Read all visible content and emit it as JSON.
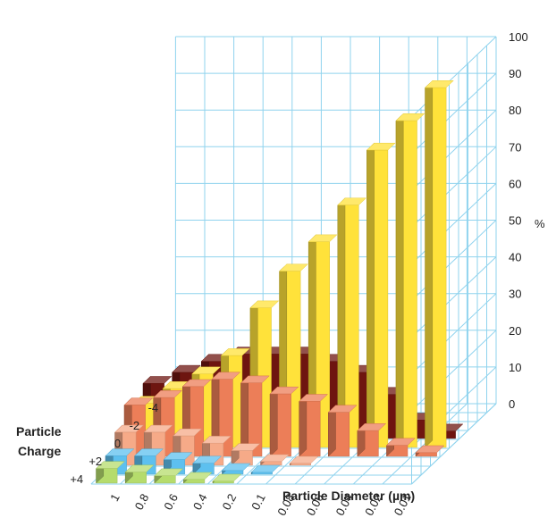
{
  "chart_data": {
    "type": "bar3d",
    "title": "",
    "xlabel": "Particle Diameter (µm)",
    "ylabel_lines": [
      "Particle",
      "Charge"
    ],
    "zlabel": "%",
    "diameters": [
      "1",
      "0.8",
      "0.6",
      "0.4",
      "0.2",
      "0.1",
      "0.08",
      "0.06",
      "0.04",
      "0.02",
      "0.01"
    ],
    "charges": [
      "-4",
      "-3",
      "-2",
      "-1",
      "0",
      "+1",
      "+2",
      "+3",
      "+4"
    ],
    "charge_tick_labels": [
      "-4",
      "-2",
      "0",
      "+2",
      "+4"
    ],
    "zlim": [
      0,
      100
    ],
    "zticks": [
      "0",
      "10",
      "20",
      "30",
      "40",
      "50",
      "60",
      "70",
      "80",
      "90",
      "100"
    ],
    "grid": true,
    "colors": {
      "0": "#ffe23a",
      "+1": "#ec7e58",
      "-1": "#6e1510",
      "+2": "#f6aa88",
      "-2": "#f3886a",
      "+3": "#5dc0ef",
      "-3": "#e7826f",
      "+4": "#b5dc6c",
      "-4": "#a7d66a",
      "gridline": "#8fd3ee"
    },
    "series": [
      {
        "charge": "-4",
        "values": [
          2,
          1,
          0.5,
          0.2,
          0,
          0,
          0,
          0,
          0,
          0,
          0
        ]
      },
      {
        "charge": "-3",
        "values": [
          3,
          3,
          2,
          1,
          0.5,
          0,
          0,
          0,
          0,
          0,
          0
        ]
      },
      {
        "charge": "-2",
        "values": [
          9,
          9,
          8,
          6,
          4,
          1,
          0.5,
          0,
          0,
          0,
          0
        ]
      },
      {
        "charge": "-1",
        "values": [
          15,
          18,
          21,
          23,
          23,
          23,
          21,
          18,
          12,
          5,
          2
        ]
      },
      {
        "charge": "0",
        "values": [
          12,
          16,
          20,
          25,
          38,
          48,
          56,
          66,
          81,
          89,
          98
        ]
      },
      {
        "charge": "+1",
        "values": [
          14,
          16,
          19,
          21,
          20,
          17,
          15,
          12,
          7,
          3,
          1
        ]
      },
      {
        "charge": "+2",
        "values": [
          9,
          9,
          8,
          6,
          4,
          1,
          0.5,
          0,
          0,
          0,
          0
        ]
      },
      {
        "charge": "+3",
        "values": [
          5,
          5,
          4,
          3,
          1,
          0.5,
          0,
          0,
          0,
          0,
          0
        ]
      },
      {
        "charge": "+4",
        "values": [
          4,
          3,
          2,
          1,
          0.5,
          0,
          0,
          0,
          0,
          0,
          0
        ]
      }
    ]
  }
}
